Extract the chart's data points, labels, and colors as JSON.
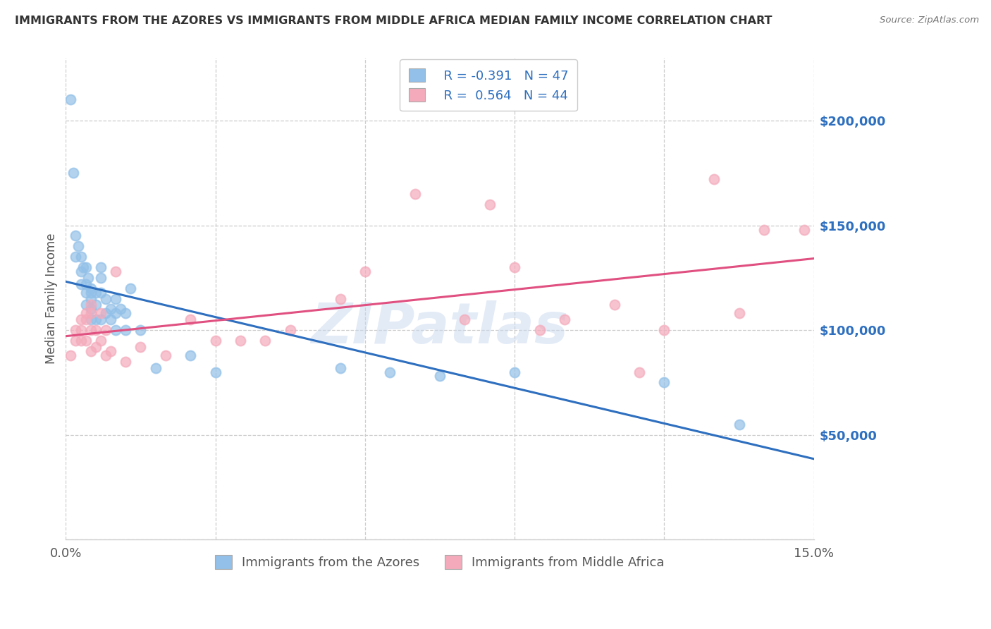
{
  "title": "IMMIGRANTS FROM THE AZORES VS IMMIGRANTS FROM MIDDLE AFRICA MEDIAN FAMILY INCOME CORRELATION CHART",
  "source": "Source: ZipAtlas.com",
  "ylabel": "Median Family Income",
  "xlim": [
    0,
    0.15
  ],
  "ylim": [
    0,
    230000
  ],
  "xticks": [
    0.0,
    0.03,
    0.06,
    0.09,
    0.12,
    0.15
  ],
  "yticks": [
    0,
    50000,
    100000,
    150000,
    200000
  ],
  "ytick_labels": [
    "",
    "$50,000",
    "$100,000",
    "$150,000",
    "$200,000"
  ],
  "xtick_labels": [
    "0.0%",
    "",
    "",
    "",
    "",
    "15.0%"
  ],
  "legend_r1": "R = -0.391",
  "legend_n1": "N = 47",
  "legend_r2": "R =  0.564",
  "legend_n2": "N = 44",
  "label1": "Immigrants from the Azores",
  "label2": "Immigrants from Middle Africa",
  "color1": "#92C0E8",
  "color2": "#F4AABB",
  "line_color1": "#2E6FBF",
  "line_color2": "#E05080",
  "watermark": "ZIPatlas",
  "azores_x": [
    0.001,
    0.0015,
    0.002,
    0.002,
    0.0025,
    0.003,
    0.003,
    0.003,
    0.0035,
    0.004,
    0.004,
    0.004,
    0.004,
    0.0045,
    0.005,
    0.005,
    0.005,
    0.005,
    0.005,
    0.006,
    0.006,
    0.006,
    0.007,
    0.007,
    0.007,
    0.007,
    0.008,
    0.008,
    0.009,
    0.009,
    0.01,
    0.01,
    0.01,
    0.011,
    0.012,
    0.012,
    0.013,
    0.015,
    0.018,
    0.025,
    0.03,
    0.055,
    0.065,
    0.075,
    0.09,
    0.12,
    0.135
  ],
  "azores_y": [
    210000,
    175000,
    145000,
    135000,
    140000,
    135000,
    128000,
    122000,
    130000,
    130000,
    122000,
    118000,
    112000,
    125000,
    120000,
    118000,
    115000,
    110000,
    105000,
    118000,
    112000,
    105000,
    130000,
    125000,
    118000,
    105000,
    115000,
    108000,
    110000,
    105000,
    115000,
    108000,
    100000,
    110000,
    108000,
    100000,
    120000,
    100000,
    82000,
    88000,
    80000,
    82000,
    80000,
    78000,
    80000,
    75000,
    55000
  ],
  "africa_x": [
    0.001,
    0.002,
    0.002,
    0.003,
    0.003,
    0.003,
    0.004,
    0.004,
    0.004,
    0.005,
    0.005,
    0.005,
    0.005,
    0.006,
    0.006,
    0.007,
    0.007,
    0.008,
    0.008,
    0.009,
    0.01,
    0.012,
    0.015,
    0.02,
    0.025,
    0.03,
    0.035,
    0.04,
    0.045,
    0.055,
    0.06,
    0.07,
    0.08,
    0.085,
    0.09,
    0.095,
    0.1,
    0.11,
    0.115,
    0.12,
    0.13,
    0.135,
    0.14,
    0.148
  ],
  "africa_y": [
    88000,
    100000,
    95000,
    105000,
    100000,
    95000,
    108000,
    105000,
    95000,
    112000,
    108000,
    100000,
    90000,
    100000,
    92000,
    108000,
    95000,
    100000,
    88000,
    90000,
    128000,
    85000,
    92000,
    88000,
    105000,
    95000,
    95000,
    95000,
    100000,
    115000,
    128000,
    165000,
    105000,
    160000,
    130000,
    100000,
    105000,
    112000,
    80000,
    100000,
    172000,
    108000,
    148000,
    148000
  ]
}
